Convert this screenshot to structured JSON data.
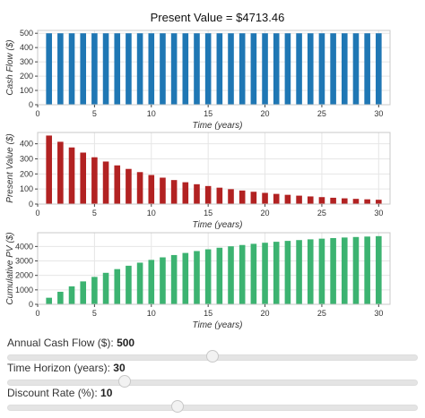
{
  "chart_data": [
    {
      "type": "bar",
      "title": "Present Value = $4713.46",
      "xlabel": "Time (years)",
      "ylabel": "Cash Flow ($)",
      "xlim": [
        0,
        31
      ],
      "ylim": [
        0,
        520
      ],
      "xticks": [
        0,
        5,
        10,
        15,
        20,
        25,
        30
      ],
      "yticks": [
        0,
        100,
        200,
        300,
        400,
        500
      ],
      "grid": true,
      "color": "#1f77b4",
      "x": [
        1,
        2,
        3,
        4,
        5,
        6,
        7,
        8,
        9,
        10,
        11,
        12,
        13,
        14,
        15,
        16,
        17,
        18,
        19,
        20,
        21,
        22,
        23,
        24,
        25,
        26,
        27,
        28,
        29,
        30
      ],
      "values": [
        500,
        500,
        500,
        500,
        500,
        500,
        500,
        500,
        500,
        500,
        500,
        500,
        500,
        500,
        500,
        500,
        500,
        500,
        500,
        500,
        500,
        500,
        500,
        500,
        500,
        500,
        500,
        500,
        500,
        500
      ]
    },
    {
      "type": "bar",
      "xlabel": "Time (years)",
      "ylabel": "Present Value ($)",
      "xlim": [
        0,
        31
      ],
      "ylim": [
        0,
        475
      ],
      "xticks": [
        0,
        5,
        10,
        15,
        20,
        25,
        30
      ],
      "yticks": [
        0,
        100,
        200,
        300,
        400
      ],
      "grid": true,
      "color": "#b22222",
      "x": [
        1,
        2,
        3,
        4,
        5,
        6,
        7,
        8,
        9,
        10,
        11,
        12,
        13,
        14,
        15,
        16,
        17,
        18,
        19,
        20,
        21,
        22,
        23,
        24,
        25,
        26,
        27,
        28,
        29,
        30
      ],
      "values": [
        454.55,
        413.22,
        375.66,
        341.51,
        310.46,
        282.24,
        256.58,
        233.25,
        212.05,
        192.77,
        175.25,
        159.32,
        144.83,
        131.67,
        119.7,
        108.82,
        98.93,
        89.93,
        81.76,
        74.32,
        67.57,
        61.42,
        55.84,
        50.76,
        46.15,
        41.95,
        38.14,
        34.67,
        31.52,
        28.65
      ]
    },
    {
      "type": "bar",
      "xlabel": "Time (years)",
      "ylabel": "Cumulative PV ($)",
      "xlim": [
        0,
        31
      ],
      "ylim": [
        0,
        4950
      ],
      "xticks": [
        0,
        5,
        10,
        15,
        20,
        25,
        30
      ],
      "yticks": [
        0,
        1000,
        2000,
        3000,
        4000
      ],
      "grid": true,
      "color": "#3cb371",
      "x": [
        1,
        2,
        3,
        4,
        5,
        6,
        7,
        8,
        9,
        10,
        11,
        12,
        13,
        14,
        15,
        16,
        17,
        18,
        19,
        20,
        21,
        22,
        23,
        24,
        25,
        26,
        27,
        28,
        29,
        30
      ],
      "values": [
        454.55,
        867.77,
        1243.43,
        1584.93,
        1895.39,
        2177.63,
        2434.21,
        2667.46,
        2879.51,
        3072.28,
        3247.53,
        3406.85,
        3551.68,
        3683.35,
        3803.04,
        3911.86,
        4010.79,
        4100.72,
        4182.48,
        4256.8,
        4324.37,
        4385.79,
        4441.63,
        4492.39,
        4538.53,
        4580.48,
        4618.62,
        4653.29,
        4684.81,
        4713.46
      ]
    }
  ],
  "controls": {
    "cash_flow": {
      "label": "Annual Cash Flow ($):",
      "value": "500",
      "fraction": 0.5
    },
    "time_horizon": {
      "label": "Time Horizon (years):",
      "value": "30",
      "fraction": 0.285
    },
    "discount_rate": {
      "label": "Discount Rate (%):",
      "value": "10",
      "fraction": 0.415
    }
  }
}
